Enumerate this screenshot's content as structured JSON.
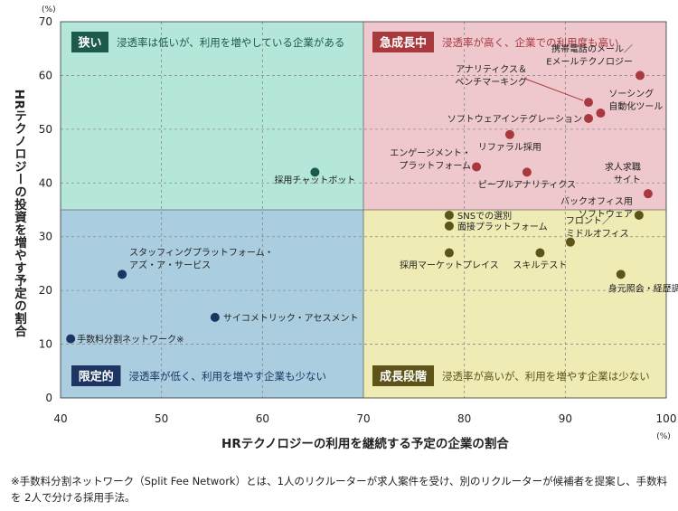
{
  "chart_data": {
    "type": "scatter",
    "title": "",
    "xlabel": "HRテクノロジーの利用を継続する予定の企業の割合",
    "ylabel": "HRテクノロジーの投資を増やす予定の割合",
    "x_unit": "(%)",
    "y_unit": "(%)",
    "xlim": [
      40,
      100
    ],
    "ylim": [
      0,
      70
    ],
    "x_ticks": [
      40,
      50,
      60,
      70,
      80,
      90,
      100
    ],
    "y_ticks": [
      0,
      10,
      20,
      30,
      40,
      50,
      60,
      70
    ],
    "grid": true,
    "divider": {
      "x": 70,
      "y": 35
    },
    "quadrants": [
      {
        "key": "top-left",
        "tag": "狭い",
        "desc": "浸透率は低いが、利用を増やしている企業がある",
        "fill": "#b4e6da",
        "tag_bg": "#1c5a4c"
      },
      {
        "key": "top-right",
        "tag": "急成長中",
        "desc": "浸透率が高く、企業での利用度も高い",
        "fill": "#eec8cc",
        "tag_bg": "#a83a3e"
      },
      {
        "key": "bottom-left",
        "tag": "限定的",
        "desc": "浸透率が低く、利用を増やす企業も少ない",
        "fill": "#aacde0",
        "tag_bg": "#1d3563"
      },
      {
        "key": "bottom-right",
        "tag": "成長段階",
        "desc": "浸透率が高いが、利用を増やす企業は少ない",
        "fill": "#efebb4",
        "tag_bg": "#5c5418"
      }
    ],
    "points": [
      {
        "label": [
          "採用チャットボット"
        ],
        "x": 65.2,
        "y": 42,
        "color": "#1c5a4c"
      },
      {
        "label": [
          "スタッフィングプラットフォーム・",
          "アズ・ア・サービス"
        ],
        "x": 46.1,
        "y": 23,
        "color": "#1d3563"
      },
      {
        "label": [
          "サイコメトリック・アセスメント"
        ],
        "x": 55.3,
        "y": 15,
        "color": "#1d3563"
      },
      {
        "label": [
          "手数料分割ネットワーク※"
        ],
        "x": 41.0,
        "y": 11,
        "color": "#1d3563"
      },
      {
        "label": [
          "携帯電話のメール／",
          "Eメールテクノロジー"
        ],
        "x": 97.4,
        "y": 60,
        "color": "#a83a3e"
      },
      {
        "label": [
          "アナリティクス＆",
          "ベンチマーキング"
        ],
        "x": 92.3,
        "y": 55,
        "color": "#a83a3e"
      },
      {
        "label": [
          "ソーシング",
          "自動化ツール"
        ],
        "x": 93.5,
        "y": 53,
        "color": "#a83a3e"
      },
      {
        "label": [
          "ソフトウェアインテグレーション"
        ],
        "x": 92.3,
        "y": 52,
        "color": "#a83a3e"
      },
      {
        "label": [
          "リファラル採用"
        ],
        "x": 84.5,
        "y": 49,
        "color": "#a83a3e"
      },
      {
        "label": [
          "エンゲージメント・",
          "プラットフォーム"
        ],
        "x": 81.2,
        "y": 43,
        "color": "#a83a3e"
      },
      {
        "label": [
          "ピープルアナリティクス"
        ],
        "x": 86.2,
        "y": 42,
        "color": "#a83a3e"
      },
      {
        "label": [
          "求人求職",
          "サイト"
        ],
        "x": 98.2,
        "y": 38,
        "color": "#a83a3e"
      },
      {
        "label": [
          "バックオフィス用",
          "ソフトウェア"
        ],
        "x": 97.3,
        "y": 34,
        "color": "#5c5418"
      },
      {
        "label": [
          "SNSでの選別"
        ],
        "x": 78.5,
        "y": 34,
        "color": "#5c5418"
      },
      {
        "label": [
          "面接プラットフォーム"
        ],
        "x": 78.5,
        "y": 32,
        "color": "#5c5418"
      },
      {
        "label": [
          "採用マーケットプレイス"
        ],
        "x": 78.5,
        "y": 27,
        "color": "#5c5418"
      },
      {
        "label": [
          "スキルテスト"
        ],
        "x": 87.5,
        "y": 27,
        "color": "#5c5418"
      },
      {
        "label": [
          "フロント／",
          "ミドルオフィス"
        ],
        "x": 90.5,
        "y": 29,
        "color": "#5c5418"
      },
      {
        "label": [
          "身元照会・経歴調査"
        ],
        "x": 95.5,
        "y": 23,
        "color": "#5c5418"
      }
    ]
  },
  "footnote": "※手数料分割ネットワーク（Split Fee Network）とは、1人のリクルーターが求人案件を受け、別のリクルーターが候補者を提案し、手数料を 2人で分ける採用手法。"
}
